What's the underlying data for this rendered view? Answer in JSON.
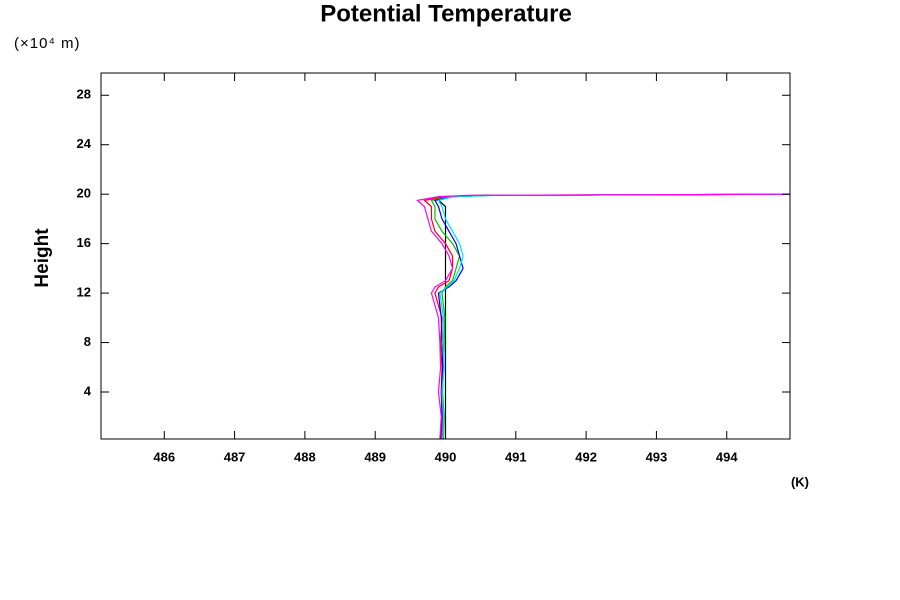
{
  "chart_data": {
    "type": "line",
    "title": "Potential Temperature",
    "y_label": "Height",
    "y_unit": "(×10⁴ m)",
    "x_unit": "(K)",
    "xlim": [
      485.1,
      494.9
    ],
    "ylim": [
      0.2,
      29.8
    ],
    "xticks": [
      486,
      487,
      488,
      489,
      490,
      491,
      492,
      493,
      494
    ],
    "yticks": [
      4,
      8,
      12,
      16,
      20,
      24,
      28
    ],
    "y": [
      0.2,
      2,
      4,
      6,
      8,
      10,
      12,
      12.5,
      13,
      14,
      15,
      16,
      17,
      18,
      19,
      19.5,
      19.8,
      19.9,
      20
    ],
    "series": [
      {
        "color": "#000000",
        "values": [
          490.0,
          490.0,
          490.0,
          490.0,
          490.0,
          490.0,
          490.0,
          490.0,
          490.0,
          490.0,
          490.0,
          490.0,
          490.0,
          490.0,
          490.0,
          489.9,
          490.1,
          490.6,
          495
        ]
      },
      {
        "color": "#ff0000",
        "values": [
          489.95,
          489.96,
          489.94,
          489.95,
          489.93,
          489.95,
          489.85,
          489.9,
          490.05,
          490.1,
          490.1,
          490.0,
          489.85,
          489.8,
          489.8,
          489.7,
          490.0,
          490.4,
          495
        ]
      },
      {
        "color": "#00c000",
        "values": [
          489.97,
          489.98,
          489.96,
          489.97,
          489.98,
          489.99,
          489.95,
          490.0,
          490.1,
          490.15,
          490.2,
          490.1,
          489.95,
          489.85,
          489.85,
          489.8,
          490.05,
          490.5,
          495
        ]
      },
      {
        "color": "#0000ff",
        "values": [
          489.93,
          489.95,
          489.94,
          489.96,
          489.95,
          489.94,
          489.9,
          490.05,
          490.15,
          490.25,
          490.2,
          490.15,
          490.05,
          489.95,
          489.9,
          489.85,
          490.1,
          490.6,
          495
        ]
      },
      {
        "color": "#00e0e0",
        "values": [
          489.96,
          489.97,
          489.95,
          489.98,
          489.96,
          489.97,
          489.92,
          490.02,
          490.12,
          490.2,
          490.25,
          490.2,
          490.1,
          490.0,
          489.95,
          489.9,
          490.1,
          490.7,
          495
        ]
      },
      {
        "color": "#ff00ff",
        "values": [
          489.92,
          489.94,
          489.9,
          489.93,
          489.92,
          489.9,
          489.8,
          489.85,
          490.0,
          490.1,
          490.05,
          489.95,
          489.8,
          489.75,
          489.7,
          489.6,
          489.9,
          490.3,
          495
        ]
      }
    ]
  }
}
